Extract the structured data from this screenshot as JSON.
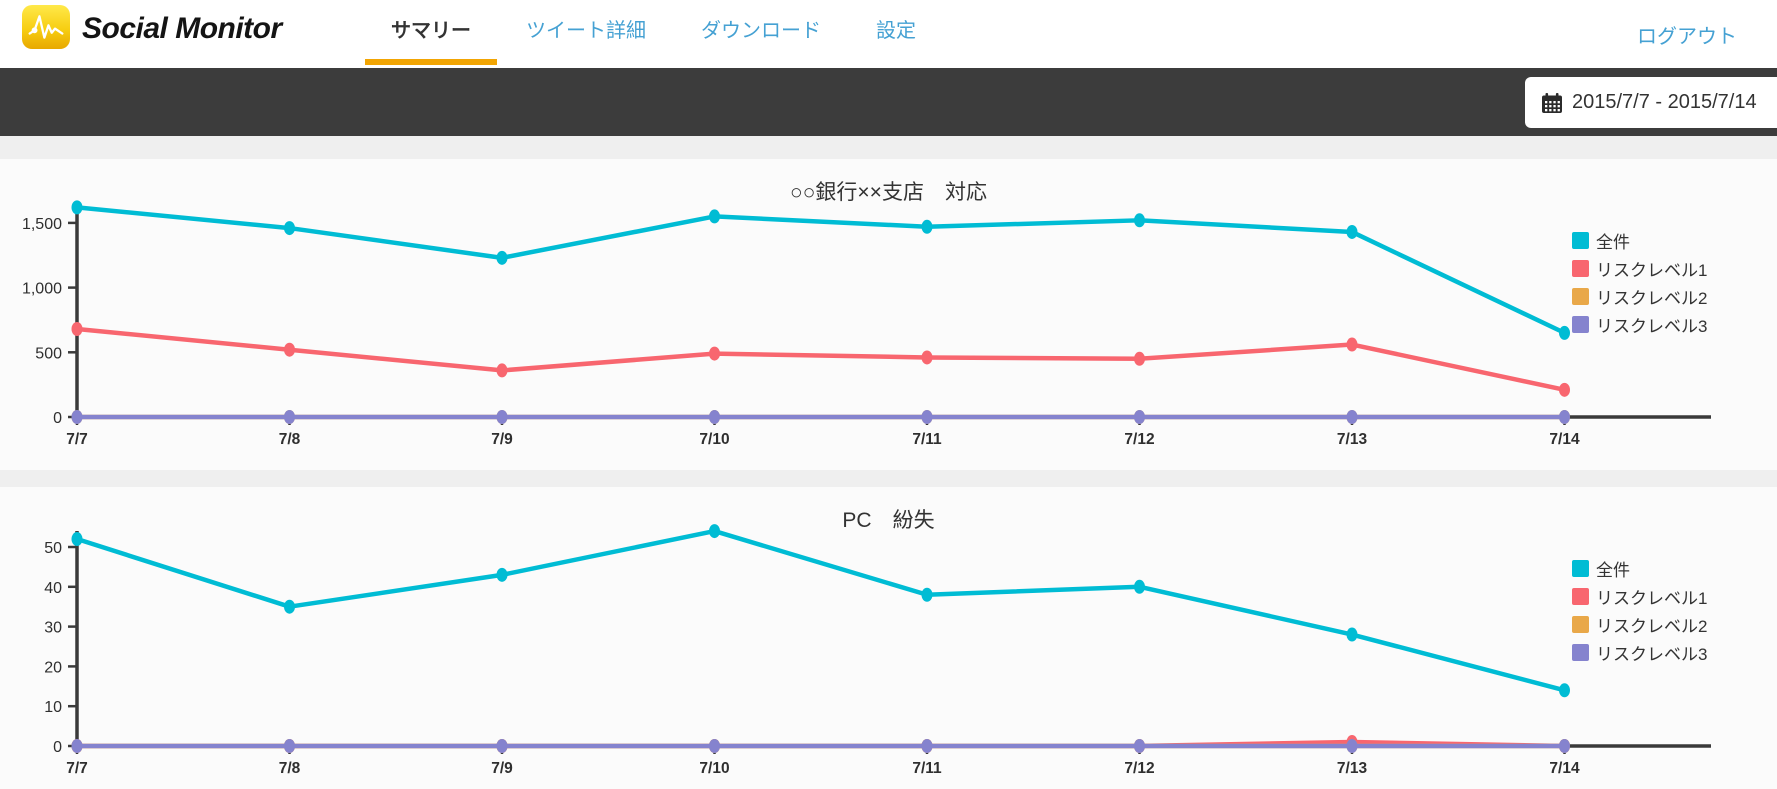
{
  "header": {
    "brand": "Social Monitor",
    "nav": [
      {
        "label": "サマリー",
        "active": true
      },
      {
        "label": "ツイート詳細",
        "active": false
      },
      {
        "label": "ダウンロード",
        "active": false
      },
      {
        "label": "設定",
        "active": false
      }
    ],
    "logout_label": "ログアウト"
  },
  "toolbar": {
    "date_range": "2015/7/7 - 2015/7/14"
  },
  "colors": {
    "accent_orange": "#f2a503",
    "link_blue": "#45a1d3",
    "toolbar_dark": "#3c3c3c",
    "axis": "#3a3a3a",
    "series_cyan": "#00bcd4",
    "series_red": "#f8666f",
    "series_orange": "#e9a849",
    "series_purple": "#8583ce"
  },
  "chart_data": [
    {
      "type": "line",
      "title": "○○銀行××支店　対応",
      "x": [
        "7/7",
        "7/8",
        "7/9",
        "7/10",
        "7/11",
        "7/12",
        "7/13",
        "7/14"
      ],
      "series": [
        {
          "name": "全件",
          "color": "#00bcd4",
          "values": [
            1620,
            1460,
            1230,
            1550,
            1470,
            1520,
            1430,
            650
          ]
        },
        {
          "name": "リスクレベル1",
          "color": "#f8666f",
          "values": [
            680,
            520,
            360,
            490,
            460,
            450,
            560,
            210
          ]
        },
        {
          "name": "リスクレベル2",
          "color": "#e9a849",
          "values": [
            0,
            0,
            0,
            0,
            0,
            0,
            0,
            0
          ]
        },
        {
          "name": "リスクレベル3",
          "color": "#8583ce",
          "values": [
            0,
            0,
            0,
            0,
            0,
            0,
            0,
            0
          ]
        }
      ],
      "ylim": [
        0,
        1650
      ],
      "yticks": [
        0,
        500,
        1000,
        1500
      ],
      "ytick_labels": [
        "0",
        "500",
        "1,000",
        "1,500"
      ],
      "grid": false,
      "legend_position": "right"
    },
    {
      "type": "line",
      "title": "PC　紛失",
      "x": [
        "7/7",
        "7/8",
        "7/9",
        "7/10",
        "7/11",
        "7/12",
        "7/13",
        "7/14"
      ],
      "series": [
        {
          "name": "全件",
          "color": "#00bcd4",
          "values": [
            52,
            35,
            43,
            54,
            38,
            40,
            28,
            14
          ]
        },
        {
          "name": "リスクレベル1",
          "color": "#f8666f",
          "values": [
            0,
            0,
            0,
            0,
            0,
            0,
            1,
            0
          ]
        },
        {
          "name": "リスクレベル2",
          "color": "#e9a849",
          "values": [
            0,
            0,
            0,
            0,
            0,
            0,
            0,
            0
          ]
        },
        {
          "name": "リスクレベル3",
          "color": "#8583ce",
          "values": [
            0,
            0,
            0,
            0,
            0,
            0,
            0,
            0
          ]
        }
      ],
      "ylim": [
        0,
        55
      ],
      "yticks": [
        0,
        10,
        20,
        30,
        40,
        50
      ],
      "ytick_labels": [
        "0",
        "10",
        "20",
        "30",
        "40",
        "50"
      ],
      "grid": false,
      "legend_position": "right"
    }
  ]
}
